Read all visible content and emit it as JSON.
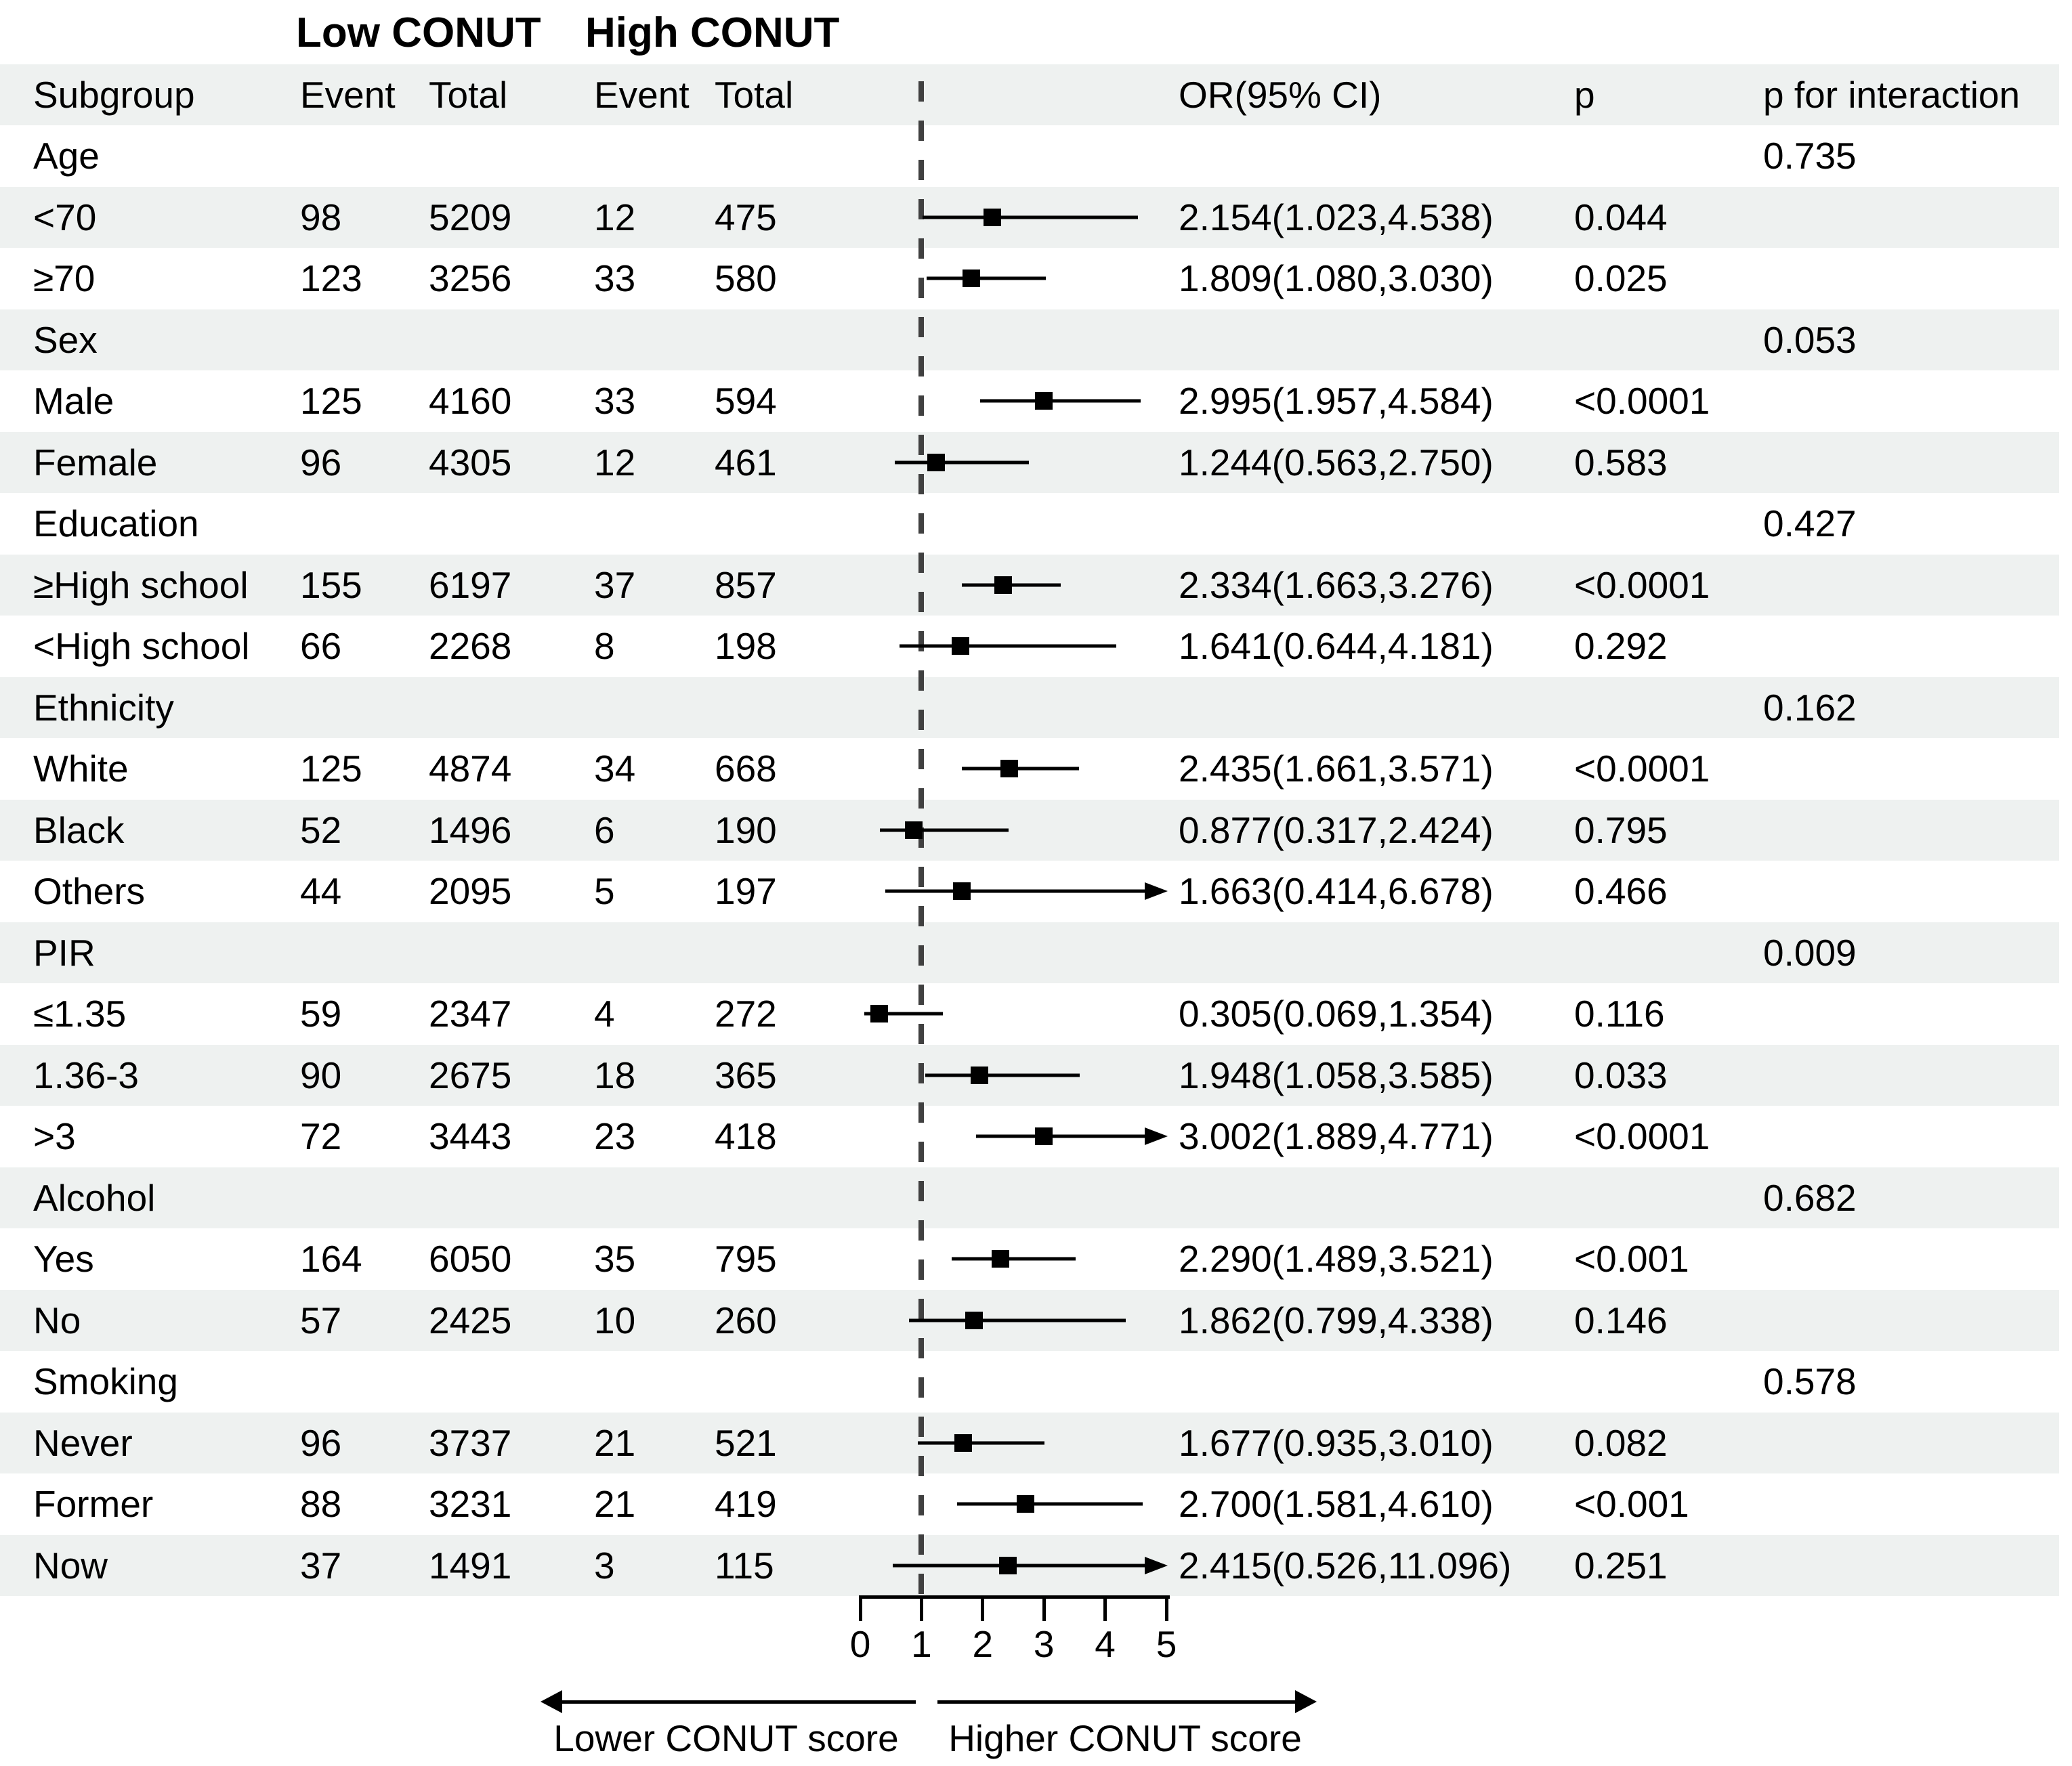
{
  "title": {
    "low": "Low CONUT",
    "high": "High CONUT"
  },
  "header": {
    "subgroup": "Subgroup",
    "event_low": "Event",
    "total_low": "Total",
    "event_high": "Event",
    "total_high": "Total",
    "or": "OR(95% CI)",
    "p": "p",
    "p_interaction": "p for interaction"
  },
  "axis": {
    "tick_labels": [
      "0",
      "1",
      "2",
      "3",
      "4",
      "5"
    ],
    "left_label": "Lower CONUT score",
    "right_label": "Higher CONUT score"
  },
  "colors": {
    "stripe": "#eef1f0",
    "ink": "#000000",
    "dash_line": "#404040"
  },
  "chart_data": {
    "type": "forest",
    "marker": "square",
    "reference_value": 1,
    "or_axis_range": [
      0,
      5
    ],
    "rows": [
      {
        "type": "group",
        "label": "Age",
        "p_interaction": "0.735"
      },
      {
        "type": "item",
        "label": "<70",
        "event_low": "98",
        "total_low": "5209",
        "event_high": "12",
        "total_high": "475",
        "or": 2.154,
        "ci_low": 1.023,
        "ci_high": 4.538,
        "or_text": "2.154(1.023,4.538)",
        "p": "0.044"
      },
      {
        "type": "item",
        "label": "≥70",
        "event_low": "123",
        "total_low": "3256",
        "event_high": "33",
        "total_high": "580",
        "or": 1.809,
        "ci_low": 1.08,
        "ci_high": 3.03,
        "or_text": "1.809(1.080,3.030)",
        "p": "0.025"
      },
      {
        "type": "group",
        "label": "Sex",
        "p_interaction": "0.053"
      },
      {
        "type": "item",
        "label": "Male",
        "event_low": "125",
        "total_low": "4160",
        "event_high": "33",
        "total_high": "594",
        "or": 2.995,
        "ci_low": 1.957,
        "ci_high": 4.584,
        "or_text": "2.995(1.957,4.584)",
        "p": "<0.0001"
      },
      {
        "type": "item",
        "label": "Female",
        "event_low": "96",
        "total_low": "4305",
        "event_high": "12",
        "total_high": "461",
        "or": 1.244,
        "ci_low": 0.563,
        "ci_high": 2.75,
        "or_text": "1.244(0.563,2.750)",
        "p": "0.583"
      },
      {
        "type": "group",
        "label": "Education",
        "p_interaction": "0.427"
      },
      {
        "type": "item",
        "label": "≥High school",
        "event_low": "155",
        "total_low": "6197",
        "event_high": "37",
        "total_high": "857",
        "or": 2.334,
        "ci_low": 1.663,
        "ci_high": 3.276,
        "or_text": "2.334(1.663,3.276)",
        "p": "<0.0001"
      },
      {
        "type": "item",
        "label": "<High school",
        "event_low": "66",
        "total_low": "2268",
        "event_high": "8",
        "total_high": "198",
        "or": 1.641,
        "ci_low": 0.644,
        "ci_high": 4.181,
        "or_text": "1.641(0.644,4.181)",
        "p": "0.292"
      },
      {
        "type": "group",
        "label": "Ethnicity",
        "p_interaction": "0.162"
      },
      {
        "type": "item",
        "label": "White",
        "event_low": "125",
        "total_low": "4874",
        "event_high": "34",
        "total_high": "668",
        "or": 2.435,
        "ci_low": 1.661,
        "ci_high": 3.571,
        "or_text": "2.435(1.661,3.571)",
        "p": "<0.0001"
      },
      {
        "type": "item",
        "label": "Black",
        "event_low": "52",
        "total_low": "1496",
        "event_high": "6",
        "total_high": "190",
        "or": 0.877,
        "ci_low": 0.317,
        "ci_high": 2.424,
        "or_text": "0.877(0.317,2.424)",
        "p": "0.795"
      },
      {
        "type": "item",
        "label": "Others",
        "event_low": "44",
        "total_low": "2095",
        "event_high": "5",
        "total_high": "197",
        "or": 1.663,
        "ci_low": 0.414,
        "ci_high": 6.678,
        "or_text": "1.663(0.414,6.678)",
        "p": "0.466"
      },
      {
        "type": "group",
        "label": "PIR",
        "p_interaction": "0.009"
      },
      {
        "type": "item",
        "label": "≤1.35",
        "event_low": "59",
        "total_low": "2347",
        "event_high": "4",
        "total_high": "272",
        "or": 0.305,
        "ci_low": 0.069,
        "ci_high": 1.354,
        "or_text": "0.305(0.069,1.354)",
        "p": "0.116"
      },
      {
        "type": "item",
        "label": "1.36-3",
        "event_low": "90",
        "total_low": "2675",
        "event_high": "18",
        "total_high": "365",
        "or": 1.948,
        "ci_low": 1.058,
        "ci_high": 3.585,
        "or_text": "1.948(1.058,3.585)",
        "p": "0.033"
      },
      {
        "type": "item",
        "label": ">3",
        "event_low": "72",
        "total_low": "3443",
        "event_high": "23",
        "total_high": "418",
        "or": 3.002,
        "ci_low": 1.889,
        "ci_high": 4.771,
        "or_text": "3.002(1.889,4.771)",
        "p": "<0.0001"
      },
      {
        "type": "group",
        "label": "Alcohol",
        "p_interaction": "0.682"
      },
      {
        "type": "item",
        "label": "Yes",
        "event_low": "164",
        "total_low": "6050",
        "event_high": "35",
        "total_high": "795",
        "or": 2.29,
        "ci_low": 1.489,
        "ci_high": 3.521,
        "or_text": "2.290(1.489,3.521)",
        "p": "<0.001"
      },
      {
        "type": "item",
        "label": "No",
        "event_low": "57",
        "total_low": "2425",
        "event_high": "10",
        "total_high": "260",
        "or": 1.862,
        "ci_low": 0.799,
        "ci_high": 4.338,
        "or_text": "1.862(0.799,4.338)",
        "p": "0.146"
      },
      {
        "type": "group",
        "label": "Smoking",
        "p_interaction": "0.578"
      },
      {
        "type": "item",
        "label": "Never",
        "event_low": "96",
        "total_low": "3737",
        "event_high": "21",
        "total_high": "521",
        "or": 1.677,
        "ci_low": 0.935,
        "ci_high": 3.01,
        "or_text": "1.677(0.935,3.010)",
        "p": "0.082"
      },
      {
        "type": "item",
        "label": "Former",
        "event_low": "88",
        "total_low": "3231",
        "event_high": "21",
        "total_high": "419",
        "or": 2.7,
        "ci_low": 1.581,
        "ci_high": 4.61,
        "or_text": "2.700(1.581,4.610)",
        "p": "<0.001"
      },
      {
        "type": "item",
        "label": "Now",
        "event_low": "37",
        "total_low": "1491",
        "event_high": "3",
        "total_high": "115",
        "or": 2.415,
        "ci_low": 0.526,
        "ci_high": 11.096,
        "or_text": "2.415(0.526,11.096)",
        "p": "0.251"
      }
    ]
  }
}
